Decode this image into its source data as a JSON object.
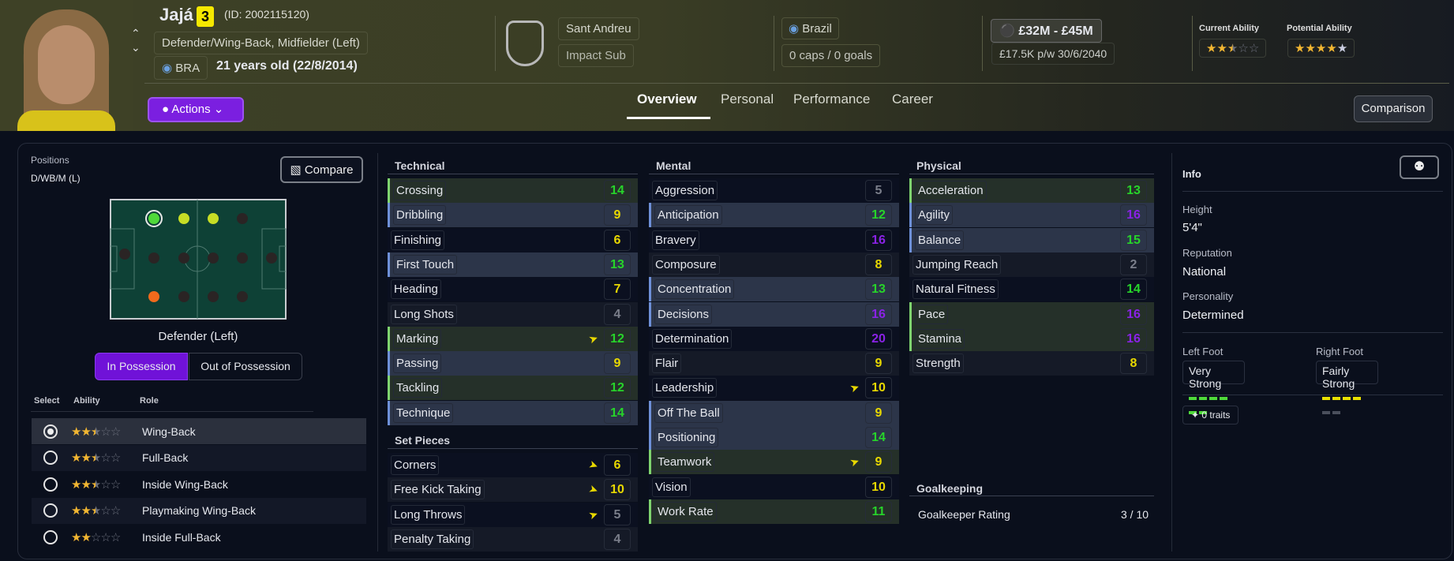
{
  "player": {
    "name": "Jajá",
    "squad_number": "3",
    "id_text": "(ID: 2002115120)",
    "positions_text": "Defender/Wing-Back, Midfielder (Left)",
    "nation_code": "BRA",
    "age_text": "21 years old (22/8/2014)"
  },
  "club": {
    "name": "Sant Andreu",
    "status": "Impact Sub"
  },
  "international": {
    "country": "Brazil",
    "caps_text": "0 caps / 0 goals"
  },
  "contract": {
    "value_range": "£32M - £45M",
    "wage_text": "£17.5K p/w 30/6/2040"
  },
  "ability": {
    "current_label": "Current Ability",
    "current_stars": 2.5,
    "potential_label": "Potential Ability",
    "potential_stars": 5,
    "potential_stars_filled": 4
  },
  "actions_label": "Actions",
  "tabs": [
    {
      "label": "Overview",
      "active": true
    },
    {
      "label": "Personal"
    },
    {
      "label": "Performance"
    },
    {
      "label": "Career"
    }
  ],
  "comparison_label": "Comparison",
  "positions_panel": {
    "title": "Positions",
    "short": "D/WB/M (L)",
    "compare_label": "Compare",
    "selected_position": "Defender (Left)",
    "pitch_dots": [
      "natural",
      "accomplished",
      "accomplished",
      "none",
      "none",
      "none",
      "none",
      "none",
      "none",
      "none",
      "unconvincing",
      "none",
      "none",
      "none"
    ],
    "toggle": [
      "In Possession",
      "Out of Possession"
    ],
    "headers": {
      "select": "Select",
      "ability": "Ability",
      "role": "Role"
    },
    "roles": [
      {
        "name": "Wing-Back",
        "stars": 2.5,
        "selected": true
      },
      {
        "name": "Full-Back",
        "stars": 2.5
      },
      {
        "name": "Inside Wing-Back",
        "stars": 2.5
      },
      {
        "name": "Playmaking Wing-Back",
        "stars": 2.5
      },
      {
        "name": "Inside Full-Back",
        "stars": 2
      }
    ]
  },
  "attributes": {
    "technical": {
      "title": "Technical",
      "items": [
        {
          "name": "Crossing",
          "value": 14,
          "hl": "green"
        },
        {
          "name": "Dribbling",
          "value": 9,
          "hl": "blue"
        },
        {
          "name": "Finishing",
          "value": 6
        },
        {
          "name": "First Touch",
          "value": 13,
          "hl": "blue"
        },
        {
          "name": "Heading",
          "value": 7
        },
        {
          "name": "Long Shots",
          "value": 4
        },
        {
          "name": "Marking",
          "value": 12,
          "hl": "green",
          "arrow": "up"
        },
        {
          "name": "Passing",
          "value": 9,
          "hl": "blue"
        },
        {
          "name": "Tackling",
          "value": 12,
          "hl": "green"
        },
        {
          "name": "Technique",
          "value": 14,
          "hl": "blue"
        }
      ]
    },
    "set_pieces": {
      "title": "Set Pieces",
      "items": [
        {
          "name": "Corners",
          "value": 6,
          "arrow": "down"
        },
        {
          "name": "Free Kick Taking",
          "value": 10,
          "arrow": "down"
        },
        {
          "name": "Long Throws",
          "value": 5,
          "arrow": "up"
        },
        {
          "name": "Penalty Taking",
          "value": 4
        }
      ]
    },
    "mental": {
      "title": "Mental",
      "items": [
        {
          "name": "Aggression",
          "value": 5
        },
        {
          "name": "Anticipation",
          "value": 12,
          "hl": "blue"
        },
        {
          "name": "Bravery",
          "value": 16
        },
        {
          "name": "Composure",
          "value": 8
        },
        {
          "name": "Concentration",
          "value": 13,
          "hl": "blue"
        },
        {
          "name": "Decisions",
          "value": 16,
          "hl": "blue"
        },
        {
          "name": "Determination",
          "value": 20
        },
        {
          "name": "Flair",
          "value": 9
        },
        {
          "name": "Leadership",
          "value": 10,
          "arrow": "up"
        },
        {
          "name": "Off The Ball",
          "value": 9,
          "hl": "blue"
        },
        {
          "name": "Positioning",
          "value": 14,
          "hl": "blue"
        },
        {
          "name": "Teamwork",
          "value": 9,
          "hl": "green",
          "arrow": "up"
        },
        {
          "name": "Vision",
          "value": 10
        },
        {
          "name": "Work Rate",
          "value": 11,
          "hl": "green"
        }
      ]
    },
    "physical": {
      "title": "Physical",
      "items": [
        {
          "name": "Acceleration",
          "value": 13,
          "hl": "green"
        },
        {
          "name": "Agility",
          "value": 16,
          "hl": "blue"
        },
        {
          "name": "Balance",
          "value": 15,
          "hl": "blue"
        },
        {
          "name": "Jumping Reach",
          "value": 2
        },
        {
          "name": "Natural Fitness",
          "value": 14
        },
        {
          "name": "Pace",
          "value": 16,
          "hl": "green"
        },
        {
          "name": "Stamina",
          "value": 16,
          "hl": "green"
        },
        {
          "name": "Strength",
          "value": 8
        }
      ]
    },
    "goalkeeping": {
      "title": "Goalkeeping",
      "label": "Goalkeeper Rating",
      "value": "3 / 10"
    }
  },
  "info": {
    "title": "Info",
    "height_label": "Height",
    "height": "5'4\"",
    "reputation_label": "Reputation",
    "reputation": "National",
    "personality_label": "Personality",
    "personality": "Determined",
    "left_foot_label": "Left Foot",
    "left_foot": "Very Strong",
    "left_foot_level": 6,
    "right_foot_label": "Right Foot",
    "right_foot": "Fairly Strong",
    "right_foot_level": 4,
    "foot_level_max": 6,
    "traits_label": "0 traits"
  },
  "colors": {
    "accent": "#7b1fe0",
    "value_high": "#8a22e6",
    "value_good": "#27d42a",
    "value_mid": "#e8d800",
    "value_low": "#7a7e8a",
    "hl_green": "#7fd46f",
    "hl_blue": "#6e90d8"
  }
}
